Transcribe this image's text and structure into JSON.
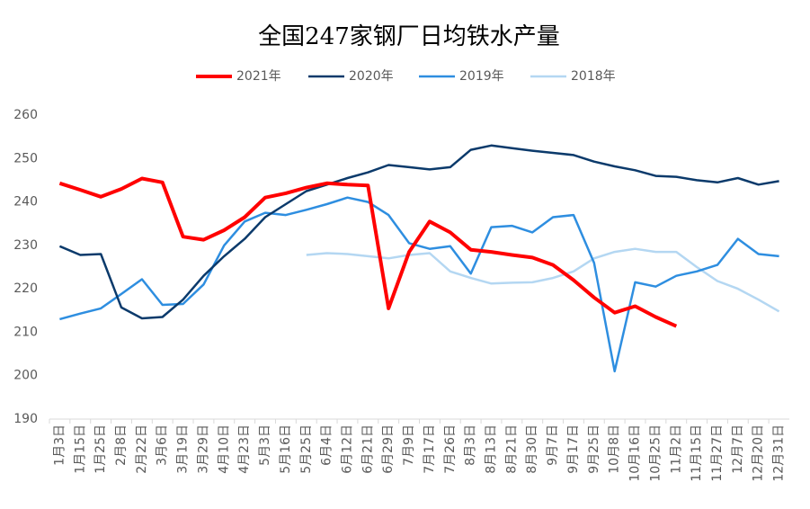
{
  "chart_data": {
    "type": "line",
    "title": "全国247家钢厂日均铁水产量",
    "categories": [
      "1月3日",
      "1月15日",
      "1月25日",
      "2月8日",
      "2月22日",
      "3月6日",
      "3月19日",
      "3月29日",
      "4月10日",
      "4月23日",
      "5月3日",
      "5月16日",
      "5月25日",
      "6月4日",
      "6月12日",
      "6月21日",
      "6月29日",
      "7月9日",
      "7月17日",
      "7月26日",
      "8月3日",
      "8月13日",
      "8月21日",
      "8月30日",
      "9月7日",
      "9月17日",
      "9月25日",
      "10月8日",
      "10月16日",
      "10月25日",
      "11月2日",
      "11月15日",
      "11月27日",
      "12月7日",
      "12月20日",
      "12月31日"
    ],
    "series": [
      {
        "name": "2021年",
        "color": "#ff0000",
        "width": 4,
        "values": [
          244.3,
          242.8,
          241.2,
          243,
          245.4,
          244.5,
          232,
          231.3,
          233.5,
          236.5,
          241,
          242,
          243.3,
          244.3,
          244,
          243.8,
          215.5,
          228.5,
          235.5,
          233,
          229,
          228.5,
          227.8,
          227.2,
          225.5,
          222,
          218,
          214.5,
          216,
          213.5,
          211.4,
          null,
          null,
          null,
          null,
          null
        ]
      },
      {
        "name": "2020年",
        "color": "#0b3a6b",
        "width": 2.5,
        "values": [
          229.8,
          227.8,
          228,
          215.7,
          213.2,
          213.5,
          217.5,
          223,
          227.5,
          231.5,
          236.5,
          239.5,
          242.5,
          244,
          245.5,
          246.8,
          248.5,
          248,
          247.5,
          248,
          252,
          253,
          252.4,
          251.8,
          251.3,
          250.8,
          249.3,
          248.2,
          247.3,
          246,
          245.8,
          245,
          244.5,
          245.5,
          244,
          244.8
        ]
      },
      {
        "name": "2019年",
        "color": "#2e8ee0",
        "width": 2.5,
        "values": [
          213,
          214.3,
          215.5,
          218.8,
          222.2,
          216.3,
          216.5,
          221,
          230,
          235.5,
          237.5,
          237,
          238.2,
          239.5,
          241,
          240,
          237,
          230.5,
          229.2,
          229.8,
          223.5,
          234.2,
          234.5,
          233,
          236.5,
          237,
          226,
          201,
          221.5,
          220.5,
          223,
          224,
          225.5,
          231.5,
          228,
          227.5
        ]
      },
      {
        "name": "2018年",
        "color": "#b4d7f2",
        "width": 2.5,
        "values": [
          null,
          null,
          null,
          null,
          null,
          null,
          null,
          null,
          null,
          null,
          null,
          null,
          227.8,
          228.2,
          228,
          227.5,
          227,
          227.8,
          228.2,
          224,
          222.5,
          221.2,
          221.4,
          221.5,
          222.5,
          224,
          227,
          228.5,
          229.2,
          228.5,
          228.5,
          225,
          221.8,
          220,
          217.5,
          214.8
        ]
      }
    ],
    "ylim": [
      190,
      260
    ],
    "yticks": [
      190,
      200,
      210,
      220,
      230,
      240,
      250,
      260
    ],
    "grid": false,
    "legend": "top"
  }
}
